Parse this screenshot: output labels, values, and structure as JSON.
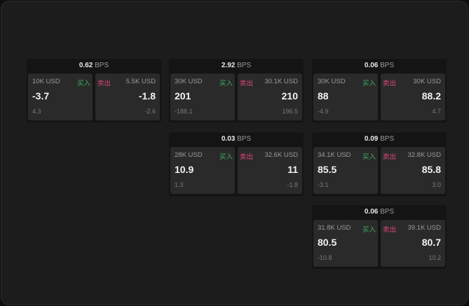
{
  "labels": {
    "unit": "BPS",
    "buy": "买入",
    "sell": "卖出"
  },
  "colors": {
    "buy": "#3fae5f",
    "sell": "#e0457b"
  },
  "cards": [
    {
      "spread": "0.62",
      "bid": {
        "qty": "10K USD",
        "price": "-3.7",
        "change": "4.3"
      },
      "ask": {
        "qty": "5.5K USD",
        "price": "-1.8",
        "change": "-2.6"
      }
    },
    {
      "spread": "2.92",
      "bid": {
        "qty": "30K USD",
        "price": "201",
        "change": "-188.1"
      },
      "ask": {
        "qty": "30.1K USD",
        "price": "210",
        "change": "196.5"
      }
    },
    {
      "spread": "0.06",
      "bid": {
        "qty": "30K USD",
        "price": "88",
        "change": "-4.9"
      },
      "ask": {
        "qty": "30K USD",
        "price": "88.2",
        "change": "4.7"
      }
    },
    {
      "spread": "0.03",
      "bid": {
        "qty": "28K USD",
        "price": "10.9",
        "change": "1.3"
      },
      "ask": {
        "qty": "32.6K USD",
        "price": "11",
        "change": "-1.8"
      }
    },
    {
      "spread": "0.09",
      "bid": {
        "qty": "34.1K USD",
        "price": "85.5",
        "change": "-3.1"
      },
      "ask": {
        "qty": "32.8K USD",
        "price": "85.8",
        "change": "3.0"
      }
    },
    {
      "spread": "0.06",
      "bid": {
        "qty": "31.8K USD",
        "price": "80.5",
        "change": "-10.8"
      },
      "ask": {
        "qty": "39.1K USD",
        "price": "80.7",
        "change": "10.2"
      }
    }
  ]
}
